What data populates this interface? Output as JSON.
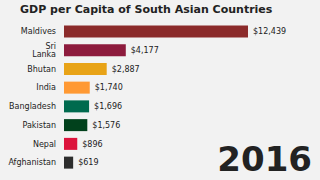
{
  "chart_data": {
    "type": "bar",
    "orientation": "horizontal",
    "title": "GDP per Capita of South Asian Countries",
    "annotation": "2016",
    "categories": [
      "Maldives",
      "Sri Lanka",
      "Bhutan",
      "India",
      "Bangladesh",
      "Pakistan",
      "Nepal",
      "Afghanistan"
    ],
    "values": [
      12439,
      4177,
      2887,
      1740,
      1696,
      1576,
      896,
      619
    ],
    "value_labels": [
      "$12,439",
      "$4,177",
      "$2,887",
      "$1,740",
      "$1,696",
      "$1,576",
      "$896",
      "$619"
    ],
    "colors": [
      "#8b2a2a",
      "#8d1b3d",
      "#e8a317",
      "#ff9933",
      "#006a4e",
      "#01411c",
      "#dc143c",
      "#2d2d2d"
    ],
    "xlim": [
      0,
      12439
    ],
    "data_labels": true,
    "grid": false,
    "tick_labels": "y"
  }
}
